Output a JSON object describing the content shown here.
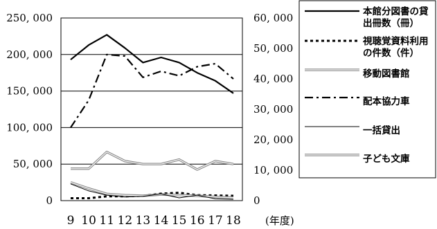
{
  "chart_data": {
    "type": "line",
    "x": [
      "9",
      "10",
      "11",
      "12",
      "13",
      "14",
      "15",
      "16",
      "17",
      "18"
    ],
    "xlabel": "(年度)",
    "y_left": {
      "range": [
        0,
        250000
      ],
      "ticks": [
        0,
        50000,
        100000,
        150000,
        200000,
        250000
      ],
      "tick_labels": [
        "0",
        "50, 000",
        "100, 000",
        "150, 000",
        "200, 000",
        "250, 000"
      ]
    },
    "y_right": {
      "range": [
        0,
        60000
      ],
      "ticks": [
        0,
        10000,
        20000,
        30000,
        40000,
        50000,
        60000
      ],
      "tick_labels": [
        "0",
        "10, 000",
        "20, 000",
        "30, 000",
        "40, 000",
        "50, 000",
        "60, 000"
      ]
    },
    "grid": "horizontal",
    "legend_placement": "right",
    "series": [
      {
        "name": "本館分図書の貸出冊数（冊）",
        "axis": "left",
        "style": "solid-thick",
        "color": "#000000",
        "values": [
          193000,
          213000,
          227000,
          209000,
          189000,
          196000,
          189000,
          175000,
          164000,
          147000
        ]
      },
      {
        "name": "視聴覚資料利用の件数（件）",
        "axis": "right",
        "style": "dotted",
        "color": "#000000",
        "values": [
          800,
          800,
          1400,
          1400,
          1600,
          2300,
          2600,
          1800,
          1700,
          1600
        ]
      },
      {
        "name": "移動図書館",
        "axis": "right",
        "style": "double-gray",
        "color": "#888888",
        "values": [
          6000,
          4000,
          2200,
          1800,
          1600,
          2000,
          1800,
          1600,
          1200,
          1000
        ]
      },
      {
        "name": "配本協力車",
        "axis": "right",
        "style": "dash-dot",
        "color": "#000000",
        "values": [
          24000,
          33000,
          48000,
          47500,
          40500,
          42500,
          41000,
          44000,
          45000,
          40000
        ]
      },
      {
        "name": "一括貸出",
        "axis": "right",
        "style": "thin",
        "color": "#000000",
        "values": [
          5500,
          3200,
          1800,
          1200,
          1400,
          2200,
          900,
          1800,
          600,
          400
        ]
      },
      {
        "name": "子ども文庫",
        "axis": "right",
        "style": "double-gray",
        "color": "#888888",
        "values": [
          10500,
          10500,
          16000,
          13000,
          12000,
          12000,
          13500,
          10200,
          13000,
          12000
        ]
      }
    ]
  }
}
